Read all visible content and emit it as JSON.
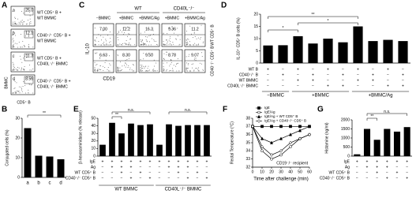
{
  "flow_a": {
    "panel": "A",
    "y_label": "BMMC",
    "x_label": "CD5⁺ B",
    "plots": [
      {
        "letter": "a",
        "value": "25.0",
        "lines": [
          "WT CD5⁺ B +",
          "WT BMMC"
        ]
      },
      {
        "letter": "b",
        "value": "12.1",
        "lines": [
          "CD40⁻/⁻ CD5⁺ B +",
          "WT BMMC"
        ]
      },
      {
        "letter": "c",
        "value": "11.3",
        "lines": [
          "WT CD5⁺ B +",
          "CD40L⁻/⁻ BMMC"
        ]
      },
      {
        "letter": "d",
        "value": "8.56",
        "lines": [
          "CD40⁻/⁻ CD5⁺ B +",
          "CD40L⁻/⁻ BMMC"
        ]
      }
    ]
  },
  "flow_c": {
    "panel": "C",
    "y_label": "IL-10",
    "x_label": "CD19",
    "groups": [
      "WT",
      "CD40L⁻/⁻"
    ],
    "columns": [
      "−BMMC",
      "+BMMC",
      "+BMMC/Ag",
      "+BMMC",
      "+BMMC/Ag"
    ],
    "rows": [
      {
        "label": "WT CD5⁺ B",
        "values": [
          "7.00",
          "12.2",
          "16.3",
          "9.36",
          "11.2"
        ]
      },
      {
        "label": "CD40⁻/⁻ CD5⁺ B",
        "values": [
          "6.63",
          "8.30",
          "9.50",
          "8.78",
          "9.07"
        ]
      }
    ]
  },
  "chart_data": [
    {
      "type": "bar",
      "panel": "B",
      "y_label": "Conjugated cells (%)",
      "categories": [
        "a",
        "b",
        "c",
        "d"
      ],
      "values": [
        25,
        11,
        10.6,
        9.2
      ],
      "color": "#000000",
      "ylim": [
        0,
        30
      ],
      "yticks": [
        0,
        10,
        20,
        30
      ],
      "annotations": [
        "**"
      ]
    },
    {
      "type": "bar",
      "panel": "D",
      "y_label": "IL-10⁺ CD5⁺ B cells (%)",
      "values": [
        7.2,
        7.3,
        11,
        8,
        10,
        8.5,
        15,
        9,
        9.5,
        9
      ],
      "color": "#000000",
      "ylim": [
        0,
        20
      ],
      "yticks": [
        0,
        5,
        10,
        15,
        20
      ],
      "conditions": [
        {
          "name": "WT B",
          "signs": [
            "+",
            "−",
            "+",
            "−",
            "+",
            "−",
            "+",
            "−",
            "+",
            "−"
          ]
        },
        {
          "name": "CD40⁻/⁻ B",
          "signs": [
            "−",
            "+",
            "−",
            "+",
            "−",
            "+",
            "−",
            "+",
            "−",
            "+"
          ]
        },
        {
          "name": "WT BMMC",
          "signs": [
            "−",
            "−",
            "+",
            "+",
            "−",
            "−",
            "+",
            "+",
            "−",
            "−"
          ]
        },
        {
          "name": "CD40L⁻/⁻ BMMC",
          "signs": [
            "−",
            "−",
            "−",
            "−",
            "+",
            "+",
            "−",
            "−",
            "+",
            "+"
          ]
        }
      ],
      "groups": [
        "−BMMC",
        "+BMMC",
        "+BMMC/Ag"
      ],
      "annotations": [
        "*",
        "**",
        "*"
      ]
    },
    {
      "type": "bar",
      "panel": "E",
      "y_label": "β-hexosaminidase (% release)",
      "values": [
        15,
        44,
        30,
        43,
        41,
        42,
        15,
        42,
        40,
        41,
        41,
        41
      ],
      "color": "#000000",
      "ylim": [
        0,
        50
      ],
      "yticks": [
        0,
        10,
        20,
        30,
        40,
        50
      ],
      "conditions": [
        {
          "name": "IgE",
          "signs": [
            "+",
            "+",
            "+",
            "+",
            "+",
            "+",
            "+",
            "+",
            "+",
            "+",
            "+",
            "+"
          ]
        },
        {
          "name": "Ag",
          "signs": [
            "−",
            "+",
            "+",
            "+",
            "−",
            "−",
            "−",
            "+",
            "+",
            "+",
            "−",
            "−"
          ]
        },
        {
          "name": "WT CD5⁺ B",
          "signs": [
            "−",
            "−",
            "+",
            "−",
            "+",
            "−",
            "−",
            "−",
            "+",
            "−",
            "+",
            "−"
          ]
        },
        {
          "name": "CD40⁻/⁻ CD5⁺ B",
          "signs": [
            "−",
            "−",
            "−",
            "+",
            "−",
            "+",
            "−",
            "−",
            "−",
            "+",
            "−",
            "+"
          ]
        }
      ],
      "groups": [
        "WT BMMC",
        "CD40L⁻/⁻ BMMC"
      ],
      "annotations": [
        "**",
        "n.s.",
        "n.s."
      ]
    },
    {
      "type": "line",
      "panel": "F",
      "y_label": "Rectal Temperature (°C)",
      "x_label": "Time after challenge (min)",
      "annotation": "CD19⁻/⁻ recipient",
      "x": [
        0,
        10,
        20,
        30,
        40,
        50,
        60
      ],
      "xlim": [
        0,
        60
      ],
      "xticks": [
        0,
        10,
        20,
        30,
        40,
        50,
        60
      ],
      "ylim": [
        32,
        38
      ],
      "yticks": [
        32,
        33,
        34,
        35,
        36,
        37,
        38
      ],
      "series": [
        {
          "name": "IgE",
          "color": "#000000",
          "marker": "square",
          "values": [
            37,
            37,
            37,
            37,
            37,
            37,
            37
          ]
        },
        {
          "name": "IgE/Ag",
          "color": "#000000",
          "marker": "circle",
          "values": [
            37,
            34,
            33,
            33.5,
            34.5,
            35.5,
            36
          ]
        },
        {
          "name": "IgE/Ag + WT CD5⁺ B",
          "color": "#000000",
          "marker": "triangle",
          "values": [
            37,
            35.5,
            35,
            35.5,
            36,
            36.5,
            37
          ]
        },
        {
          "name": "IgE/Ag + CD40⁻/⁻ CD5⁺ B",
          "color": "#000000",
          "marker": "diamond",
          "values": [
            37,
            34.5,
            33.5,
            34,
            35,
            35.5,
            36
          ]
        }
      ]
    },
    {
      "type": "bar",
      "panel": "G",
      "y_label": "Histamine (ng/ml)",
      "values": [
        100,
        1500,
        900,
        1500,
        1350,
        1600
      ],
      "color": "#000000",
      "ylim": [
        0,
        2000
      ],
      "yticks": [
        0,
        500,
        1000,
        1500,
        2000
      ],
      "conditions": [
        {
          "name": "IgE",
          "signs": [
            "+",
            "+",
            "+",
            "+",
            "+",
            "+"
          ]
        },
        {
          "name": "Ag",
          "signs": [
            "−",
            "+",
            "+",
            "+",
            "−",
            "−"
          ]
        },
        {
          "name": "WT CD5⁺ B",
          "signs": [
            "−",
            "−",
            "+",
            "−",
            "+",
            "−"
          ]
        },
        {
          "name": "CD40⁻/⁻ CD5⁺ B",
          "signs": [
            "−",
            "−",
            "−",
            "+",
            "−",
            "+"
          ]
        }
      ],
      "annotations": [
        "**",
        "n.s."
      ]
    }
  ]
}
